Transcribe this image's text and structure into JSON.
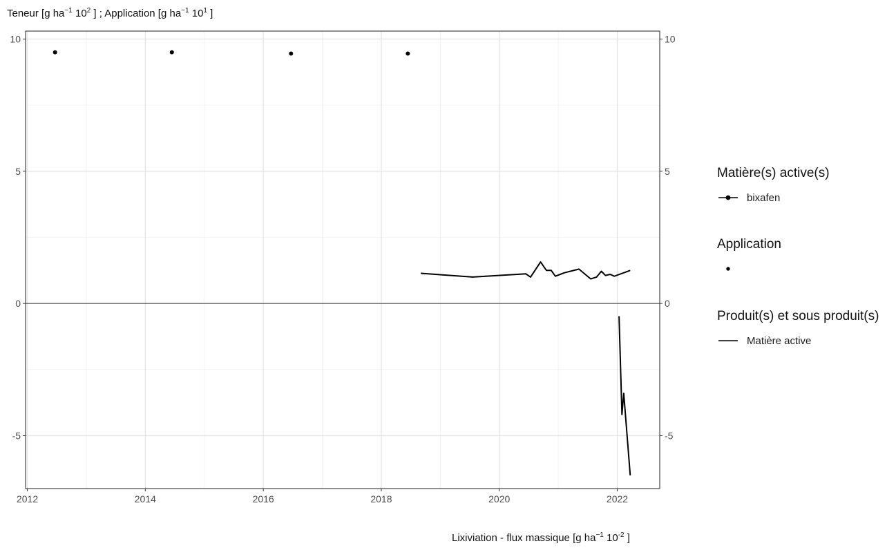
{
  "chart_data": {
    "type": "line",
    "y_axis_title": {
      "part1": "Teneur [g  ha",
      "exp1": "−1",
      "part2": " 10",
      "exp2": "2",
      "part3": " ] ; Application [g  ha",
      "exp3": "−1",
      "part4": " 10",
      "exp4": "1",
      "part5": " ]"
    },
    "x_axis_title": {
      "part1": "Lixiviation - flux massique [g  ha",
      "exp1": "−1",
      "part2": " 10",
      "exp2": "-2",
      "part3": " ]"
    },
    "xlim": [
      2011.97,
      2022.72
    ],
    "ylim": [
      -7.0,
      10.3
    ],
    "x_ticks": [
      2012,
      2014,
      2016,
      2018,
      2020,
      2022
    ],
    "x_tick_labels": [
      "2012",
      "2014",
      "2016",
      "2018",
      "2020",
      "2022"
    ],
    "y_ticks": [
      10,
      5,
      0,
      -5
    ],
    "y_tick_labels": [
      "10",
      "5",
      "0",
      "-5"
    ],
    "grid": true,
    "zero_line": true,
    "legend_position": "right",
    "series": [
      {
        "name": "bixafen",
        "kind": "teneur",
        "x": [
          2018.67,
          2019.55,
          2020.45,
          2020.53,
          2020.7,
          2020.8,
          2020.88,
          2020.95,
          2021.1,
          2021.35,
          2021.55,
          2021.65,
          2021.73,
          2021.8,
          2021.88,
          2021.95,
          2022.22
        ],
        "y": [
          1.14,
          1.0,
          1.12,
          1.0,
          1.57,
          1.25,
          1.25,
          1.03,
          1.16,
          1.3,
          0.93,
          1.0,
          1.22,
          1.06,
          1.1,
          1.03,
          1.25
        ]
      },
      {
        "name": "bixafen",
        "kind": "application",
        "x": [
          2012.47,
          2014.45,
          2016.47,
          2018.45
        ],
        "y": [
          9.5,
          9.5,
          9.45,
          9.45
        ]
      },
      {
        "name": "bixafen",
        "kind": "lixiviation",
        "x": [
          2022.03,
          2022.08,
          2022.11,
          2022.22
        ],
        "y": [
          -0.48,
          -4.2,
          -3.4,
          -6.5
        ]
      }
    ],
    "legend": [
      {
        "title": "Matière(s) active(s)",
        "item": "bixafen",
        "key": "point-line"
      },
      {
        "title": "Application",
        "item": "",
        "key": "point"
      },
      {
        "title": "Produit(s) et sous produit(s)",
        "item": "Matière active",
        "key": "line"
      }
    ]
  }
}
